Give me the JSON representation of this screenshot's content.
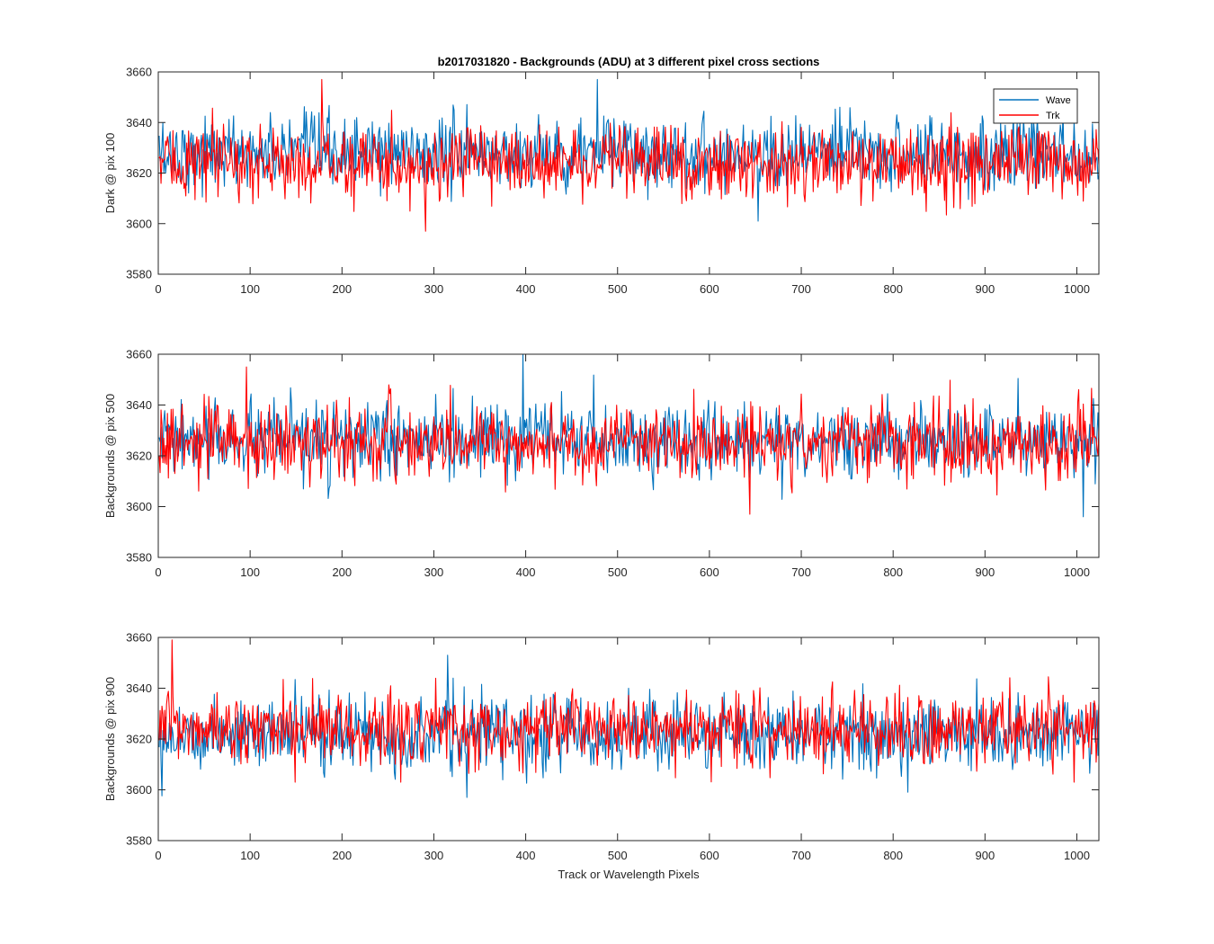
{
  "chart_data": {
    "type": "line",
    "title": "b2017031820 - Backgrounds (ADU) at 3 different pixel cross sections",
    "xlabel": "Track or Wavelength Pixels",
    "xlim": [
      0,
      1024
    ],
    "x_ticks": [
      0,
      100,
      200,
      300,
      400,
      500,
      600,
      700,
      800,
      900,
      1000
    ],
    "ylim": [
      3580,
      3660
    ],
    "y_ticks": [
      3580,
      3600,
      3620,
      3640,
      3660
    ],
    "grid": false,
    "legend": {
      "placement": "top-right",
      "entries": [
        "Wave",
        "Trk"
      ]
    },
    "colors": {
      "Wave": "#0072BD",
      "Trk": "#FF0000"
    },
    "panels": [
      {
        "ylabel": "Dark @ pix 100",
        "series": [
          {
            "name": "Wave",
            "n_points": 1024,
            "mean": 3628,
            "std": 7,
            "min": 3601,
            "max": 3657
          },
          {
            "name": "Trk",
            "n_points": 1024,
            "mean": 3624,
            "std": 7,
            "min": 3597,
            "max": 3657
          }
        ]
      },
      {
        "ylabel": "Backgrounds @ pix 500",
        "series": [
          {
            "name": "Wave",
            "n_points": 1024,
            "mean": 3626,
            "std": 7,
            "min": 3596,
            "max": 3660
          },
          {
            "name": "Trk",
            "n_points": 1024,
            "mean": 3625,
            "std": 7,
            "min": 3597,
            "max": 3655
          }
        ]
      },
      {
        "ylabel": "Backgrounds @ pix 900",
        "series": [
          {
            "name": "Wave",
            "n_points": 1024,
            "mean": 3622,
            "std": 7,
            "min": 3597,
            "max": 3653
          },
          {
            "name": "Trk",
            "n_points": 1024,
            "mean": 3624,
            "std": 7,
            "min": 3603,
            "max": 3659
          }
        ]
      }
    ]
  }
}
